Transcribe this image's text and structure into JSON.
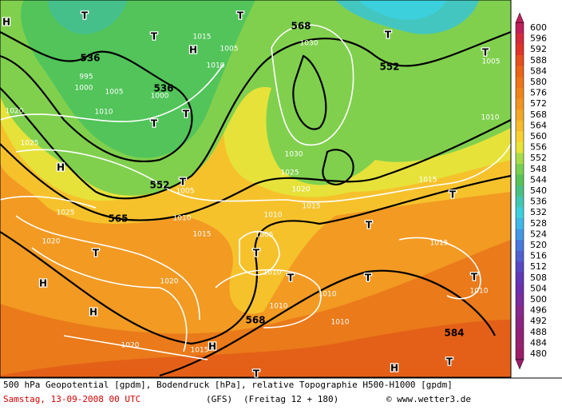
{
  "map": {
    "geopotential_labels": [
      "536",
      "536",
      "552",
      "565",
      "568",
      "552",
      "568",
      "584"
    ],
    "pressure_labels": [
      "1015",
      "1010",
      "1005",
      "995",
      "1000",
      "1005",
      "1000",
      "1010",
      "1020",
      "1025",
      "1030",
      "1030",
      "1025",
      "1020",
      "1015",
      "1015",
      "1005",
      "1010",
      "1015",
      "1010",
      "1005",
      "1025",
      "1020",
      "1020",
      "1010",
      "1010",
      "1010",
      "1010",
      "1015",
      "1010",
      "1005",
      "1010",
      "1020",
      "1015"
    ],
    "highs": [
      "H",
      "H",
      "H",
      "H",
      "H",
      "H",
      "H"
    ],
    "lows": [
      "T",
      "T",
      "T",
      "T",
      "T",
      "T",
      "T",
      "T",
      "T",
      "T",
      "T",
      "T",
      "T",
      "T",
      "T",
      "T",
      "T"
    ]
  },
  "colorbar": {
    "levels": [
      "600",
      "596",
      "592",
      "588",
      "584",
      "580",
      "576",
      "572",
      "568",
      "564",
      "560",
      "556",
      "552",
      "548",
      "544",
      "540",
      "536",
      "532",
      "528",
      "524",
      "520",
      "516",
      "512",
      "508",
      "504",
      "500",
      "496",
      "492",
      "488",
      "484",
      "480"
    ],
    "colors": [
      "#c0205a",
      "#d42a3a",
      "#e03428",
      "#e6501c",
      "#ea6418",
      "#ee7418",
      "#f08418",
      "#f29420",
      "#f4a626",
      "#f6ba2c",
      "#f8d030",
      "#e8e438",
      "#a8dc48",
      "#78d050",
      "#58c458",
      "#48c084",
      "#40c8b4",
      "#3cd0dc",
      "#40b8e8",
      "#4498e4",
      "#4a78dc",
      "#5060d0",
      "#5848c4",
      "#6038b8",
      "#6c30ac",
      "#7a2ca0",
      "#86288e",
      "#8c2484",
      "#922078",
      "#982070",
      "#9c1c68"
    ]
  },
  "footer": {
    "line1": "500 hPa Geopotential [gpdm], Bodendruck [hPa], relative Topographie H500-H1000 [gpdm]",
    "date": "Samstag, 13-09-2008  00 UTC",
    "model": "(GFS)",
    "run": "(Freitag 12 + 180)",
    "source": "© www.wetter3.de"
  }
}
